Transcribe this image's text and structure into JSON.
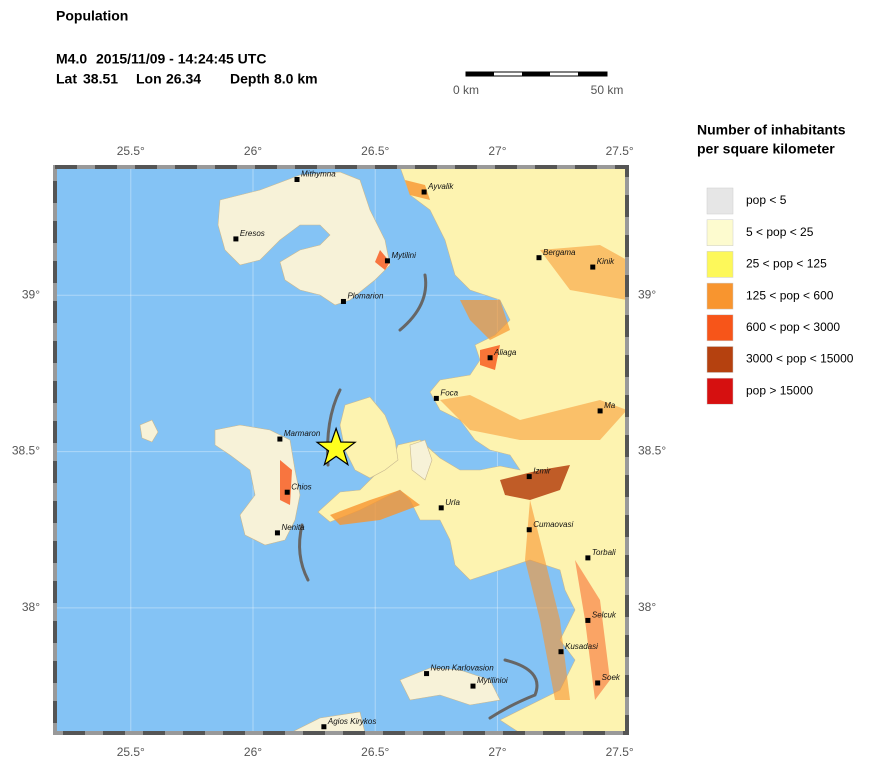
{
  "map": {
    "title": "Population",
    "event": {
      "magnitude": "M4.0",
      "time": "2015/11/09 - 14:24:45 UTC",
      "lat_label": "Lat",
      "lat": 38.51,
      "lon_label": "Lon",
      "lon": 26.34,
      "depth_label": "Depth",
      "depth": "8.0 km"
    },
    "scale_bar": {
      "start_label": "0 km",
      "end_label": "50 km"
    },
    "xlim": [
      25.19,
      27.53
    ],
    "ylim": [
      37.6,
      39.41
    ],
    "xticks": [
      {
        "value": 25.5,
        "label": "25.5°"
      },
      {
        "value": 26,
        "label": "26°"
      },
      {
        "value": 26.5,
        "label": "26.5°"
      },
      {
        "value": 27,
        "label": "27°"
      },
      {
        "value": 27.5,
        "label": "27.5°"
      }
    ],
    "yticks": [
      {
        "value": 39,
        "label": "39°"
      },
      {
        "value": 38.5,
        "label": "38.5°"
      },
      {
        "value": 38,
        "label": "38°"
      }
    ],
    "cities": [
      {
        "name": "Mithymna",
        "lon": 26.18,
        "lat": 39.37
      },
      {
        "name": "Ayvalik",
        "lon": 26.7,
        "lat": 39.33
      },
      {
        "name": "Eresos",
        "lon": 25.93,
        "lat": 39.18
      },
      {
        "name": "Mytilini",
        "lon": 26.55,
        "lat": 39.11
      },
      {
        "name": "Bergama",
        "lon": 27.17,
        "lat": 39.12
      },
      {
        "name": "Kinik",
        "lon": 27.39,
        "lat": 39.09
      },
      {
        "name": "Plomarion",
        "lon": 26.37,
        "lat": 38.98
      },
      {
        "name": "Aliaga",
        "lon": 26.97,
        "lat": 38.8
      },
      {
        "name": "Foca",
        "lon": 26.75,
        "lat": 38.67
      },
      {
        "name": "Ma",
        "lon": 27.42,
        "lat": 38.63
      },
      {
        "name": "Marmaron",
        "lon": 26.11,
        "lat": 38.54
      },
      {
        "name": "Izmir",
        "lon": 27.13,
        "lat": 38.42
      },
      {
        "name": "Chios",
        "lon": 26.14,
        "lat": 38.37
      },
      {
        "name": "Urla",
        "lon": 26.77,
        "lat": 38.32
      },
      {
        "name": "Cumaovasi",
        "lon": 27.13,
        "lat": 38.25
      },
      {
        "name": "Nenita",
        "lon": 26.1,
        "lat": 38.24
      },
      {
        "name": "Torbali",
        "lon": 27.37,
        "lat": 38.16
      },
      {
        "name": "Selcuk",
        "lon": 27.37,
        "lat": 37.96
      },
      {
        "name": "Kusadasi",
        "lon": 27.26,
        "lat": 37.86
      },
      {
        "name": "Neon Karlovasion",
        "lon": 26.71,
        "lat": 37.79
      },
      {
        "name": "Mytilinioi",
        "lon": 26.9,
        "lat": 37.75
      },
      {
        "name": "Soek",
        "lon": 27.41,
        "lat": 37.76
      },
      {
        "name": "Agios Kirykos",
        "lon": 26.29,
        "lat": 37.62
      }
    ],
    "legend": {
      "title_lines": [
        "Number of inhabitants",
        "per square kilometer"
      ],
      "items": [
        {
          "label": "pop < 5",
          "color": "#e6e6e6"
        },
        {
          "label": "5 < pop < 25",
          "color": "#fdfbcf"
        },
        {
          "label": "25 < pop < 125",
          "color": "#fdf85a"
        },
        {
          "label": "125 < pop < 600",
          "color": "#f8952f"
        },
        {
          "label": "600 < pop < 3000",
          "color": "#f75519"
        },
        {
          "label": "3000 < pop < 15000",
          "color": "#b5410f"
        },
        {
          "label": "pop > 15000",
          "color": "#d61010"
        }
      ]
    }
  }
}
